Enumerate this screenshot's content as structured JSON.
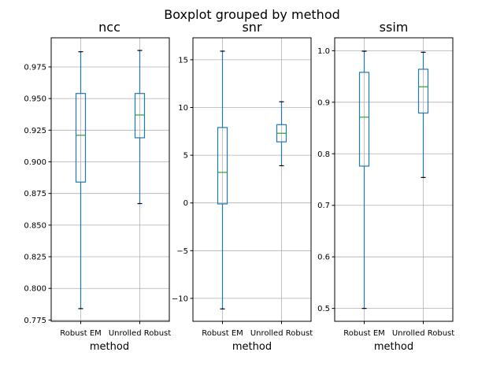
{
  "chart_data": {
    "type": "box",
    "suptitle": "Boxplot grouped by method",
    "panels": [
      {
        "title": "ncc",
        "xlabel": "method",
        "categories": [
          "Robust EM",
          "Unrolled Robust"
        ],
        "ylim": [
          0.774,
          0.998
        ],
        "yticks": [
          0.775,
          0.8,
          0.825,
          0.85,
          0.875,
          0.9,
          0.925,
          0.95,
          0.975
        ],
        "ytick_labels": [
          "0.775",
          "0.800",
          "0.825",
          "0.850",
          "0.875",
          "0.900",
          "0.925",
          "0.950",
          "0.975"
        ],
        "boxes": [
          {
            "category": "Robust EM",
            "whislo": 0.784,
            "q1": 0.884,
            "med": 0.921,
            "q3": 0.954,
            "whishi": 0.987
          },
          {
            "category": "Unrolled Robust",
            "whislo": 0.867,
            "q1": 0.919,
            "med": 0.937,
            "q3": 0.954,
            "whishi": 0.988
          }
        ],
        "grid": true
      },
      {
        "title": "snr",
        "xlabel": "method",
        "categories": [
          "Robust EM",
          "Unrolled Robust"
        ],
        "ylim": [
          -12.4,
          17.3
        ],
        "yticks": [
          -10,
          -5,
          0,
          5,
          10,
          15
        ],
        "ytick_labels": [
          "−10",
          "−5",
          "0",
          "5",
          "10",
          "15"
        ],
        "boxes": [
          {
            "category": "Robust EM",
            "whislo": -11.1,
            "q1": -0.1,
            "med": 3.2,
            "q3": 7.9,
            "whishi": 15.9
          },
          {
            "category": "Unrolled Robust",
            "whislo": 3.9,
            "q1": 6.4,
            "med": 7.3,
            "q3": 8.2,
            "whishi": 10.6
          }
        ],
        "grid": true
      },
      {
        "title": "ssim",
        "xlabel": "method",
        "categories": [
          "Robust EM",
          "Unrolled Robust"
        ],
        "ylim": [
          0.475,
          1.025
        ],
        "yticks": [
          0.5,
          0.6,
          0.7,
          0.8,
          0.9,
          1.0
        ],
        "ytick_labels": [
          "0.5",
          "0.6",
          "0.7",
          "0.8",
          "0.9",
          "1.0"
        ],
        "boxes": [
          {
            "category": "Robust EM",
            "whislo": 0.5,
            "q1": 0.776,
            "med": 0.871,
            "q3": 0.958,
            "whishi": 0.999
          },
          {
            "category": "Unrolled Robust",
            "whislo": 0.754,
            "q1": 0.879,
            "med": 0.93,
            "q3": 0.964,
            "whishi": 0.997
          }
        ],
        "grid": true
      }
    ],
    "colors": {
      "box": "#1f77b4",
      "median": "#2ca02c",
      "whisker": "#1f77b4",
      "cap": "#000000",
      "grid": "#b0b0b0",
      "axes": "#000000"
    }
  }
}
